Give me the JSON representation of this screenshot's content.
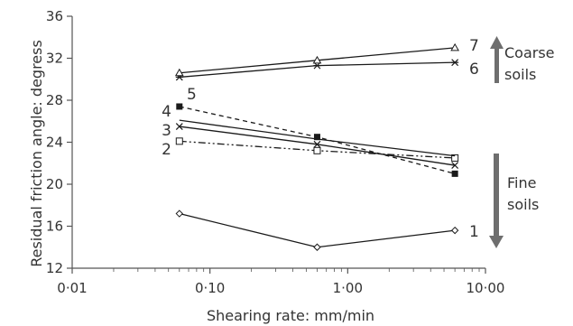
{
  "chart_data": {
    "type": "line",
    "xlabel": "Shearing rate: mm/min",
    "ylabel": "Residual friction angle: degress",
    "x_scale": "log",
    "xlim": [
      0.01,
      10
    ],
    "ylim": [
      12,
      36
    ],
    "x_ticks": [
      0.01,
      0.1,
      1,
      10
    ],
    "x_tick_labels": [
      "0·01",
      "0·10",
      "1·00",
      "10·00"
    ],
    "y_ticks": [
      12,
      16,
      20,
      24,
      28,
      32,
      36
    ],
    "y_tick_labels": [
      "12",
      "16",
      "20",
      "24",
      "28",
      "32",
      "36"
    ],
    "grid": false,
    "x": [
      0.06,
      0.6,
      6
    ],
    "series": [
      {
        "name": "1",
        "values": [
          17.2,
          14.0,
          15.6
        ],
        "marker": "diamond",
        "dash": "solid"
      },
      {
        "name": "2",
        "values": [
          24.1,
          23.2,
          22.5
        ],
        "marker": "square",
        "dash": "dashdotdot"
      },
      {
        "name": "3",
        "values": [
          25.5,
          23.8,
          21.8
        ],
        "marker": "x",
        "dash": "solid"
      },
      {
        "name": "4",
        "values": [
          26.1,
          24.3,
          22.7
        ],
        "marker": "none",
        "dash": "solid"
      },
      {
        "name": "5",
        "values": [
          27.4,
          24.5,
          21.0
        ],
        "marker": "filled-square",
        "dash": "dashed"
      },
      {
        "name": "6",
        "values": [
          30.2,
          31.3,
          31.6
        ],
        "marker": "star",
        "dash": "solid"
      },
      {
        "name": "7",
        "values": [
          30.6,
          31.8,
          33.0
        ],
        "marker": "triangle",
        "dash": "solid"
      }
    ],
    "annotations": {
      "coarse": [
        "Coarse",
        "soils"
      ],
      "fine": [
        "Fine",
        "soils"
      ]
    },
    "colors": {
      "line": "#1a1a1a",
      "axis": "#555555",
      "arrow": "#6e6e6e",
      "text": "#333333"
    }
  }
}
